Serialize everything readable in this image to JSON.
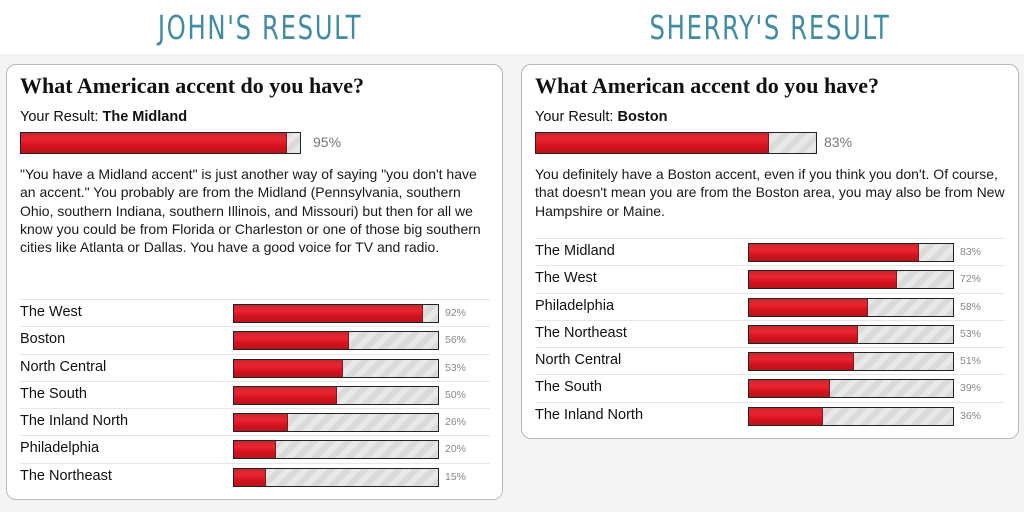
{
  "headings": {
    "left": "JOHN'S RESULT",
    "right": "SHERRY'S RESULT"
  },
  "colors": {
    "heading": "#3f8ca3",
    "bar_fill": "#e01e28",
    "bar_track": "#e2e2e2"
  },
  "john": {
    "title": "What American accent do you have?",
    "result_prefix": "Your Result:",
    "result_name": "The Midland",
    "result_pct": "95%",
    "result_value": 95,
    "description": "\"You have a Midland accent\" is just another way of saying \"you don't have an accent.\" You probably are from the Midland (Pennsylvania, southern Ohio, southern Indiana, southern Illinois, and Missouri) but then for all we know you could be from Florida or Charleston or one of those big southern cities like Atlanta or Dallas. You have a good voice for TV and radio.",
    "rows": [
      {
        "label": "The West",
        "value": 92,
        "pct": "92%"
      },
      {
        "label": "Boston",
        "value": 56,
        "pct": "56%"
      },
      {
        "label": "North Central",
        "value": 53,
        "pct": "53%"
      },
      {
        "label": "The South",
        "value": 50,
        "pct": "50%"
      },
      {
        "label": "The Inland North",
        "value": 26,
        "pct": "26%"
      },
      {
        "label": "Philadelphia",
        "value": 20,
        "pct": "20%"
      },
      {
        "label": "The Northeast",
        "value": 15,
        "pct": "15%"
      }
    ]
  },
  "sherry": {
    "title": "What American accent do you have?",
    "result_prefix": "Your Result:",
    "result_name": "Boston",
    "result_pct": "83%",
    "result_value": 83,
    "description": "You definitely have a Boston accent, even if you think you don't. Of course, that doesn't mean you are from the Boston area, you may also be from New Hampshire or Maine.",
    "rows": [
      {
        "label": "The Midland",
        "value": 83,
        "pct": "83%"
      },
      {
        "label": "The West",
        "value": 72,
        "pct": "72%"
      },
      {
        "label": "Philadelphia",
        "value": 58,
        "pct": "58%"
      },
      {
        "label": "The Northeast",
        "value": 53,
        "pct": "53%"
      },
      {
        "label": "North Central",
        "value": 51,
        "pct": "51%"
      },
      {
        "label": "The South",
        "value": 39,
        "pct": "39%"
      },
      {
        "label": "The Inland North",
        "value": 36,
        "pct": "36%"
      }
    ]
  },
  "chart_data": [
    {
      "type": "bar",
      "orientation": "horizontal",
      "title": "What American accent do you have? — John's Result",
      "result": {
        "label": "The Midland",
        "value": 95
      },
      "categories": [
        "The Midland",
        "The West",
        "Boston",
        "North Central",
        "The South",
        "The Inland North",
        "Philadelphia",
        "The Northeast"
      ],
      "values": [
        95,
        92,
        56,
        53,
        50,
        26,
        20,
        15
      ],
      "xlabel": "",
      "ylabel": "",
      "xlim": [
        0,
        100
      ],
      "unit": "%",
      "grid": false,
      "legend": "none"
    },
    {
      "type": "bar",
      "orientation": "horizontal",
      "title": "What American accent do you have? — Sherry's Result",
      "result": {
        "label": "Boston",
        "value": 83
      },
      "categories": [
        "Boston",
        "The Midland",
        "The West",
        "Philadelphia",
        "The Northeast",
        "North Central",
        "The South",
        "The Inland North"
      ],
      "values": [
        83,
        83,
        72,
        58,
        53,
        51,
        39,
        36
      ],
      "xlabel": "",
      "ylabel": "",
      "xlim": [
        0,
        100
      ],
      "unit": "%",
      "grid": false,
      "legend": "none"
    }
  ]
}
